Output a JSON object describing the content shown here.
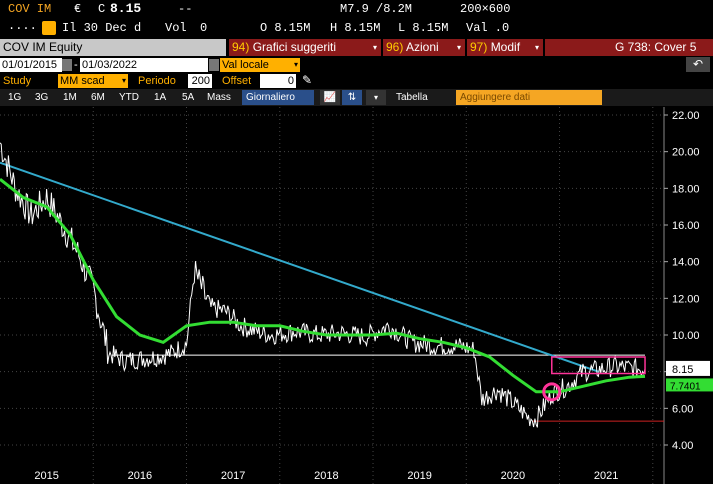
{
  "quote": {
    "ticker": "COV IM",
    "currency": "€",
    "last_label": "C",
    "last": "8.15",
    "change": "--",
    "range": "M7.9 /8.2M",
    "size": "200×600",
    "row2_prefix": "....",
    "date_label": "Il 30 Dec d",
    "vol_label": "Vol",
    "vol": "0",
    "open": "O 8.15M",
    "high": "H 8.15M",
    "low": "L 8.15M",
    "val": "Val .0"
  },
  "header": {
    "title": "COV IM Equity",
    "menu1_num": "94)",
    "menu1": "Grafici suggeriti",
    "menu2_num": "96)",
    "menu2": "Azioni",
    "menu3_num": "97)",
    "menu3": "Modif",
    "right_title": "G 738: Cover 5"
  },
  "controls": {
    "start_date": "01/01/2015",
    "end_date": "01/03/2022",
    "currency": "Val locale",
    "study_label": "Study",
    "study_value": "MM scad",
    "period_label": "Periodo",
    "period_value": "200",
    "offset_label": "Offset",
    "offset_value": "0"
  },
  "toolbar": {
    "ranges": [
      "1G",
      "3G",
      "1M",
      "6M",
      "YTD",
      "1A",
      "5A",
      "Mass"
    ],
    "frequency": "Giornaliero",
    "table": "Tabella",
    "add_data": "Aggiungere dati"
  },
  "colors": {
    "price": "#ffffff",
    "ma": "#33dd33",
    "trendline": "#33aacc",
    "support": "#ffffff",
    "low_line": "#cc2222",
    "highlight": "#ff3399"
  },
  "chart_data": {
    "type": "line",
    "ylim": [
      4.0,
      22.0
    ],
    "yticks": [
      "22.00",
      "20.00",
      "18.00",
      "16.00",
      "14.00",
      "12.00",
      "10.00",
      "8.00",
      "6.00",
      "4.00"
    ],
    "xticks": [
      "2015",
      "2016",
      "2017",
      "2018",
      "2019",
      "2020",
      "2021"
    ],
    "last_price_label": "8.15",
    "ma_label": "7.7401",
    "series": [
      {
        "x": [
          "2015-01",
          "2015-03",
          "2015-05",
          "2015-07",
          "2015-09",
          "2015-11",
          "2016-01",
          "2016-03",
          "2016-05",
          "2016-07",
          "2016-09",
          "2016-11",
          "2017-01",
          "2017-02",
          "2017-04",
          "2017-06",
          "2017-08",
          "2017-10",
          "2017-12",
          "2018-03",
          "2018-06",
          "2018-09",
          "2018-12",
          "2019-03",
          "2019-06",
          "2019-09",
          "2019-12",
          "2020-02",
          "2020-03",
          "2020-05",
          "2020-07",
          "2020-09",
          "2020-10",
          "2020-12",
          "2021-02",
          "2021-04",
          "2021-06",
          "2021-08",
          "2021-10",
          "2021-12"
        ],
        "values": [
          20.5,
          18.0,
          16.5,
          17.5,
          16.0,
          14.5,
          12.5,
          9.0,
          8.6,
          8.7,
          8.8,
          9.0,
          9.5,
          13.5,
          11.5,
          11.3,
          10.5,
          10.2,
          10.0,
          10.2,
          10.0,
          10.1,
          9.9,
          10.5,
          9.6,
          9.4,
          9.4,
          9.2,
          6.5,
          7.0,
          6.3,
          5.5,
          5.4,
          6.8,
          7.2,
          8.0,
          8.1,
          8.3,
          8.2,
          8.15
        ]
      },
      {
        "x": [
          "2015-01",
          "2015-04",
          "2015-07",
          "2015-10",
          "2016-01",
          "2016-04",
          "2016-07",
          "2016-10",
          "2017-01",
          "2017-04",
          "2017-07",
          "2017-10",
          "2018-01",
          "2018-04",
          "2018-07",
          "2018-10",
          "2019-01",
          "2019-04",
          "2019-07",
          "2019-10",
          "2020-01",
          "2020-04",
          "2020-07",
          "2020-10",
          "2021-01",
          "2021-04",
          "2021-07",
          "2021-10",
          "2021-12"
        ],
        "values": [
          18.5,
          17.5,
          17.0,
          15.5,
          13.0,
          11.0,
          10.0,
          9.6,
          10.5,
          10.7,
          10.7,
          10.5,
          10.5,
          10.2,
          10.0,
          10.0,
          10.0,
          10.1,
          9.8,
          9.6,
          9.3,
          8.8,
          7.8,
          6.9,
          6.9,
          7.2,
          7.5,
          7.7,
          7.74
        ]
      }
    ],
    "trendline": {
      "from": [
        "2015-01",
        19.4
      ],
      "to": [
        "2021-06",
        8.0
      ]
    },
    "support_level": 8.9,
    "low_level": 5.3
  }
}
